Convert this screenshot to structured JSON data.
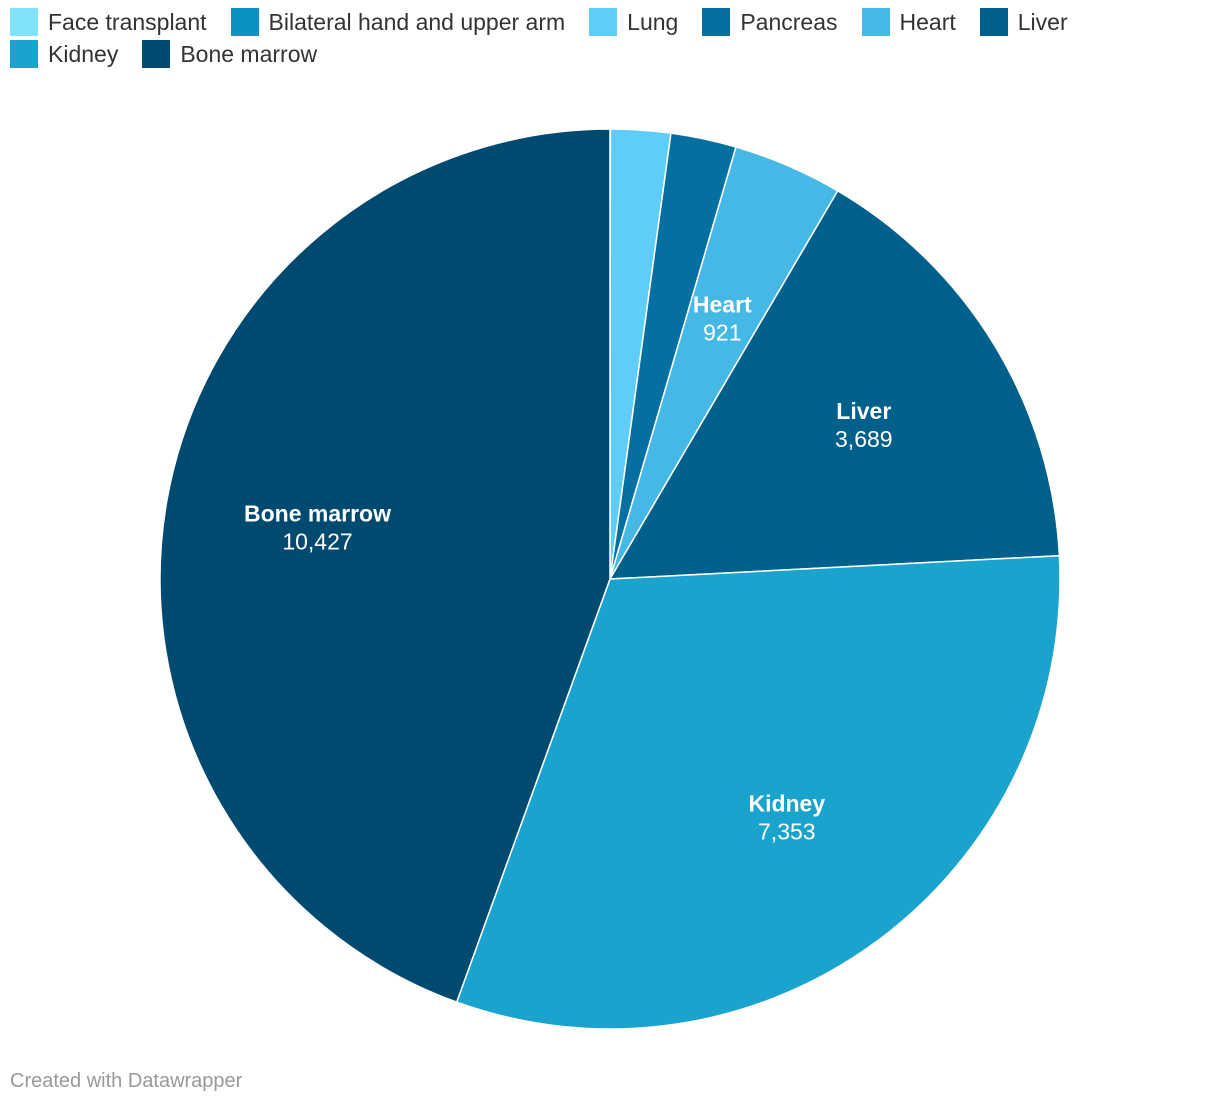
{
  "chart_data": {
    "type": "pie",
    "categories": [
      "Face transplant",
      "Bilateral hand and upper arm",
      "Lung",
      "Pancreas",
      "Heart",
      "Liver",
      "Kidney",
      "Bone marrow"
    ],
    "values": [
      1,
      2,
      504,
      552,
      921,
      3689,
      7353,
      10427
    ],
    "colors": [
      "#7ee3f9",
      "#0a93c0",
      "#5fcdf9",
      "#0570a0",
      "#46b8e6",
      "#00608c",
      "#1aa3cd",
      "#004a70"
    ],
    "value_labels": [
      "",
      "",
      "",
      "",
      "921",
      "3,689",
      "7,353",
      "10,427"
    ],
    "show_label": [
      false,
      false,
      false,
      false,
      true,
      true,
      true,
      true
    ],
    "legend_position": "top-left"
  },
  "footer": {
    "credit": "Created with Datawrapper"
  }
}
